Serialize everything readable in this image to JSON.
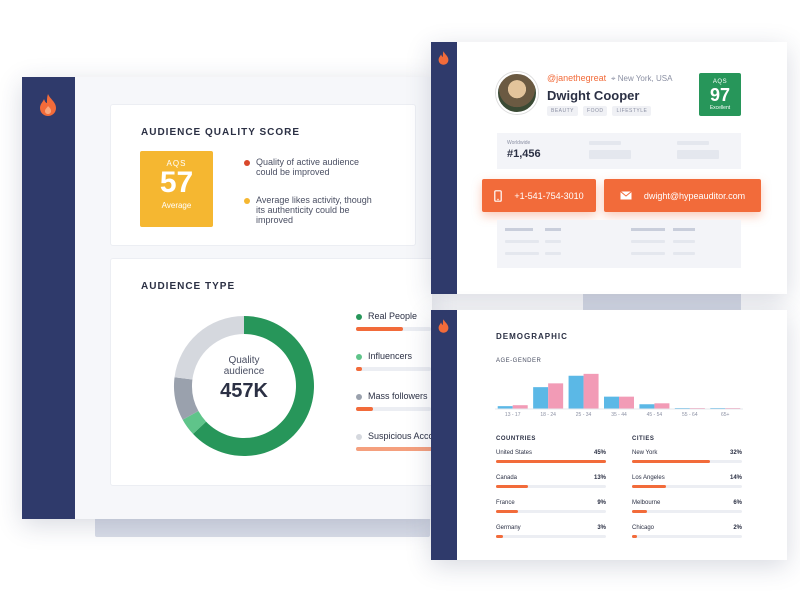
{
  "colors": {
    "navy": "#2f3a6b",
    "orange": "#f26b3a",
    "yellow": "#f5b731",
    "green": "#27965a",
    "blue": "#5bb8e6",
    "pink": "#f29bb6"
  },
  "quality": {
    "title": "AUDIENCE QUALITY SCORE",
    "aqs_label": "AQS",
    "aqs_value": "57",
    "aqs_grade": "Average",
    "notes": [
      {
        "text_l1": "Quality of active audience",
        "text_l2": "could be improved",
        "color": "#d9482b"
      },
      {
        "text_l1": "Average likes activity, though",
        "text_l2": "its authenticity could be",
        "text_l3": "improved",
        "color": "#f5b731"
      }
    ]
  },
  "audience_type": {
    "title": "AUDIENCE TYPE",
    "center_l1": "Quality",
    "center_l2": "audience",
    "center_value": "457K",
    "segments": [
      {
        "label": "Real People",
        "color": "#27965a",
        "share": 0.63
      },
      {
        "label": "Influencers",
        "color": "#5fc48a",
        "share": 0.04
      },
      {
        "label": "Mass followers",
        "color": "#9aa1ad",
        "share": 0.1
      },
      {
        "label": "Suspicious Accou",
        "color": "#d5d8de",
        "share": 0.23
      }
    ]
  },
  "profile": {
    "handle": "@janethegreat",
    "location": "New York, USA",
    "name": "Dwight Cooper",
    "tags": [
      "BEAUTY",
      "FOOD",
      "LIFESTYLE"
    ],
    "aqs_label": "AQS",
    "aqs_value": "97",
    "aqs_grade": "Excellent",
    "rank_label": "Worldwide",
    "rank_value": "#1,456",
    "phone": "+1-541-754-3010",
    "email": "dwight@hypeauditor.com"
  },
  "demographic": {
    "title": "DEMOGRAPHIC",
    "age_gender_title": "AGE-GENDER",
    "chart_data": {
      "type": "bar",
      "categories": [
        "13 - 17",
        "18 - 24",
        "25 - 34",
        "35 - 44",
        "45 - 54",
        "55 - 64",
        "65+"
      ],
      "series": [
        {
          "values": [
            3,
            23,
            35,
            13,
            5,
            1,
            1
          ]
        },
        {
          "values": [
            4,
            27,
            37,
            13,
            6,
            1,
            1
          ]
        }
      ],
      "ylim": [
        0,
        40
      ]
    },
    "countries_title": "COUNTRIES",
    "countries": [
      {
        "name": "United States",
        "value": "45%",
        "pct": 45
      },
      {
        "name": "Canada",
        "value": "13%",
        "pct": 13
      },
      {
        "name": "France",
        "value": "9%",
        "pct": 9
      },
      {
        "name": "Germany",
        "value": "3%",
        "pct": 3
      }
    ],
    "cities_title": "CITIES",
    "cities": [
      {
        "name": "New York",
        "value": "32%",
        "pct": 32
      },
      {
        "name": "Los Angeles",
        "value": "14%",
        "pct": 14
      },
      {
        "name": "Melbourne",
        "value": "6%",
        "pct": 6
      },
      {
        "name": "Chicago",
        "value": "2%",
        "pct": 2
      }
    ]
  }
}
